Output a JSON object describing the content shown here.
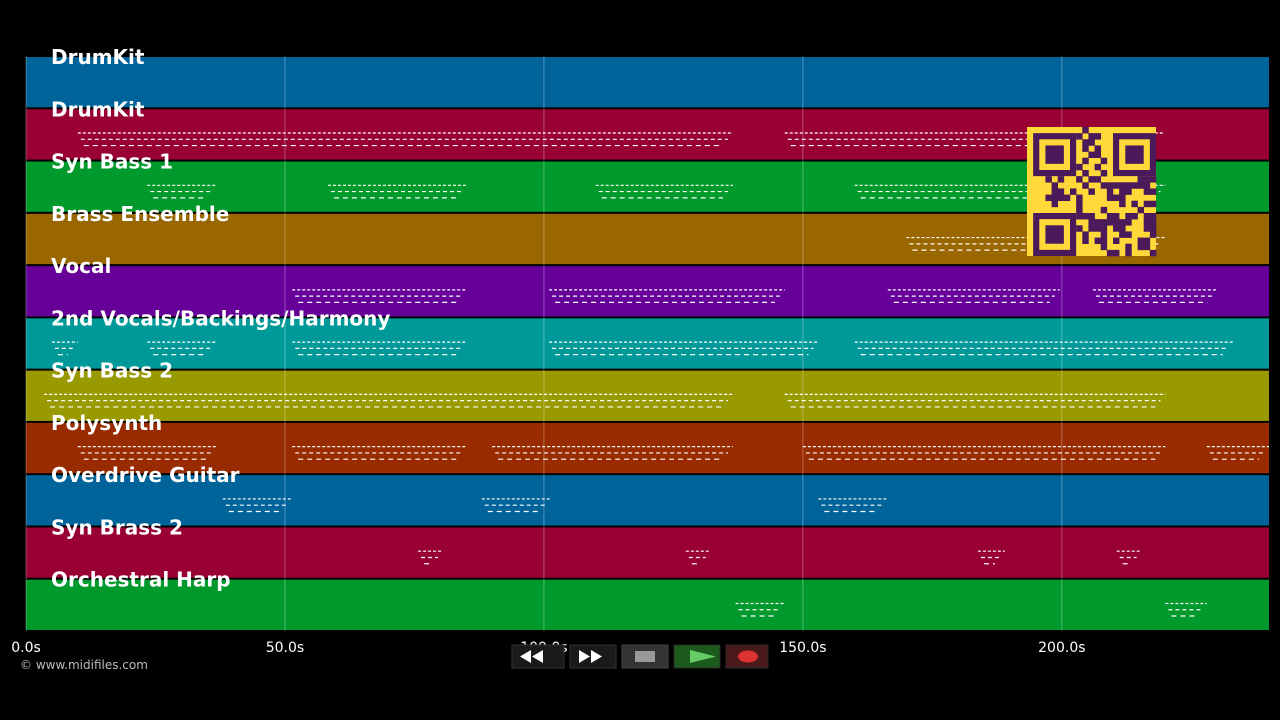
{
  "tracks": [
    {
      "name": "DrumKit",
      "color": "#00649a",
      "clips": []
    },
    {
      "name": "DrumKit",
      "color": "#990033",
      "clips": [
        [
          10,
          136.5
        ],
        [
          146.5,
          219.5
        ]
      ]
    },
    {
      "name": "Syn Bass 1",
      "color": "#00992b",
      "clips": [
        [
          23.4,
          36.7
        ],
        [
          58.3,
          85
        ],
        [
          110,
          136.5
        ],
        [
          160,
          220
        ]
      ]
    },
    {
      "name": "Brass Ensemble",
      "color": "#996600",
      "clips": [
        [
          170,
          220
        ]
      ]
    },
    {
      "name": "Vocal",
      "color": "#660099",
      "clips": [
        [
          51.4,
          85
        ],
        [
          101,
          146.5
        ],
        [
          166.4,
          199.6
        ],
        [
          206,
          230
        ]
      ]
    },
    {
      "name": "2nd Vocals/Backings/Harmony",
      "color": "#009999",
      "clips": [
        [
          5,
          10
        ],
        [
          23.4,
          36.7
        ],
        [
          51.4,
          85
        ],
        [
          101,
          153
        ],
        [
          160,
          233
        ]
      ]
    },
    {
      "name": "Syn Bass 2",
      "color": "#999900",
      "clips": [
        [
          3.5,
          136.5
        ],
        [
          146.5,
          220
        ]
      ]
    },
    {
      "name": "Polysynth",
      "color": "#992b00",
      "clips": [
        [
          10,
          36.7
        ],
        [
          51.4,
          85
        ],
        [
          90,
          136.5
        ],
        [
          150,
          220
        ],
        [
          228,
          240
        ]
      ]
    },
    {
      "name": "Overdrive Guitar",
      "color": "#00649a",
      "clips": [
        [
          38,
          51.5
        ],
        [
          88,
          101.5
        ],
        [
          153,
          166.4
        ]
      ]
    },
    {
      "name": "Syn Brass 2",
      "color": "#990033",
      "clips": [
        [
          75.7,
          80.5
        ],
        [
          127.4,
          132.2
        ],
        [
          183.8,
          189
        ],
        [
          210.6,
          215.4
        ]
      ]
    },
    {
      "name": "Orchestral Harp",
      "color": "#00992b",
      "clips": [
        [
          137,
          146.5
        ],
        [
          220,
          228
        ]
      ]
    }
  ],
  "time_axis": {
    "xlim": [
      0,
      240
    ],
    "xticks": [
      {
        "value": 0,
        "label": "0.0s"
      },
      {
        "value": 50,
        "label": "50.0s"
      },
      {
        "value": 100,
        "label": "100.0s"
      },
      {
        "value": 150,
        "label": "150.0s"
      },
      {
        "value": 200,
        "label": "200.0s"
      }
    ],
    "grid": true
  },
  "footer": {
    "copyright": "© www.midifiles.com"
  }
}
